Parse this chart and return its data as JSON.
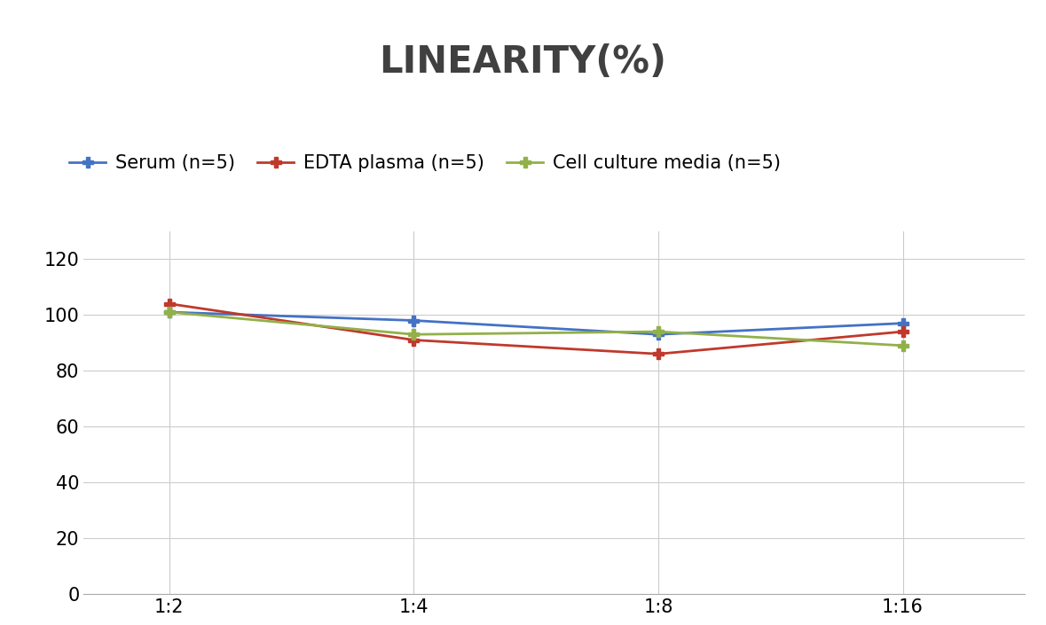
{
  "title": "LINEARITY(%)",
  "title_fontsize": 30,
  "title_fontweight": "bold",
  "title_color": "#404040",
  "x_labels": [
    "1:2",
    "1:4",
    "1:8",
    "1:16"
  ],
  "x_positions": [
    0,
    1,
    2,
    3
  ],
  "series": [
    {
      "label": "Serum (n=5)",
      "values": [
        101,
        98,
        93,
        97
      ],
      "color": "#4472C4",
      "marker": "P",
      "markersize": 9,
      "linewidth": 2.0
    },
    {
      "label": "EDTA plasma (n=5)",
      "values": [
        104,
        91,
        86,
        94
      ],
      "color": "#C0392B",
      "marker": "P",
      "markersize": 9,
      "linewidth": 2.0
    },
    {
      "label": "Cell culture media (n=5)",
      "values": [
        101,
        93,
        94,
        89
      ],
      "color": "#92B04A",
      "marker": "P",
      "markersize": 9,
      "linewidth": 2.0
    }
  ],
  "ylim": [
    0,
    130
  ],
  "yticks": [
    0,
    20,
    40,
    60,
    80,
    100,
    120
  ],
  "background_color": "#ffffff",
  "grid_color": "#cccccc",
  "tick_fontsize": 15,
  "legend_fontsize": 15
}
